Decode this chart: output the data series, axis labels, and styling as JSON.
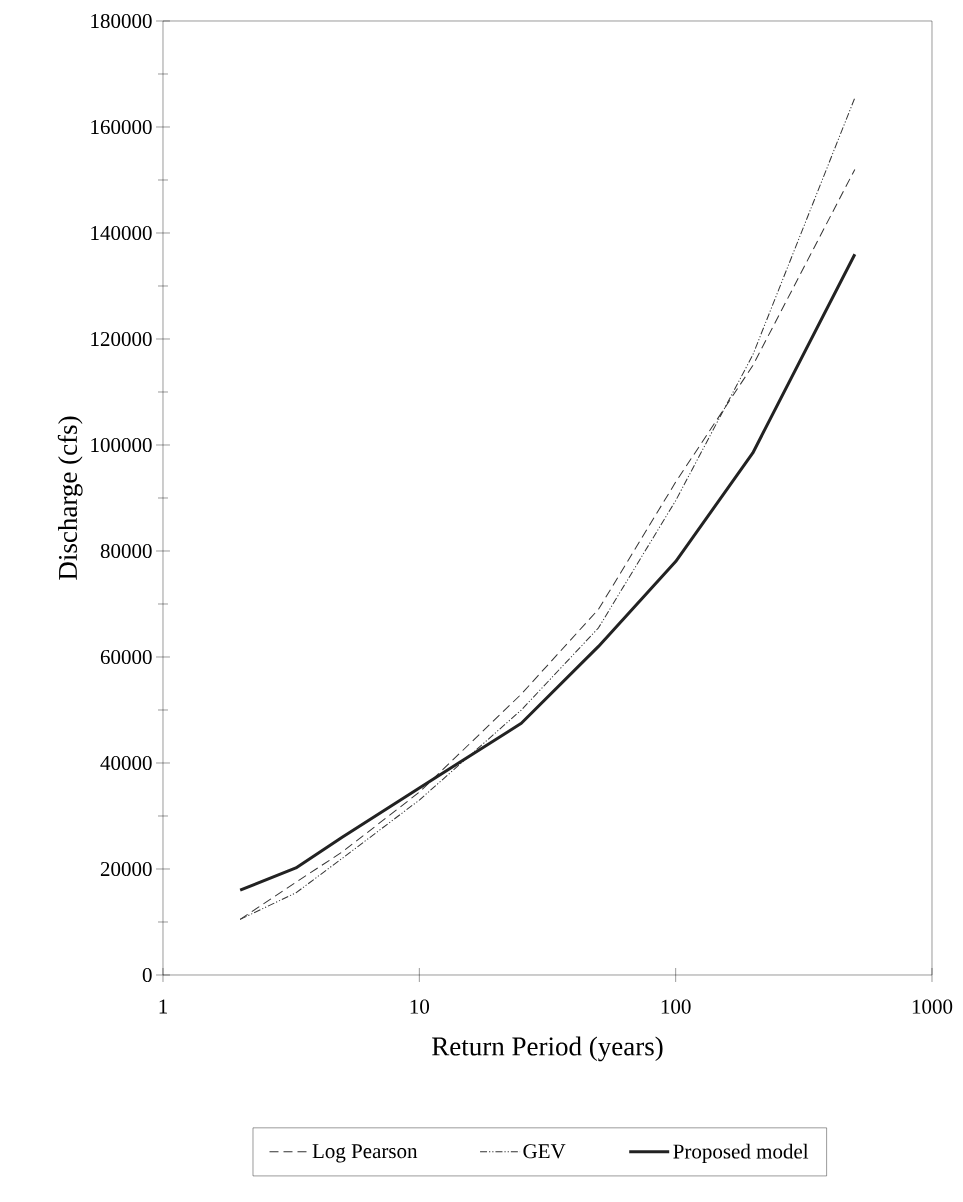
{
  "chart_data": {
    "type": "line",
    "xlabel": "Return Period (years)",
    "ylabel": "Discharge (cfs)",
    "log": "x",
    "xlim": [
      1,
      1000
    ],
    "xticks": [
      1,
      10,
      100,
      1000
    ],
    "ylim": [
      0,
      180000
    ],
    "yticks": [
      0,
      20000,
      40000,
      60000,
      80000,
      100000,
      120000,
      140000,
      160000,
      180000
    ],
    "x": [
      2,
      3.3,
      5,
      10,
      25,
      50,
      100,
      200,
      500
    ],
    "series": [
      {
        "name": "Log Pearson",
        "color": "#333333",
        "line_style": "dashed",
        "values": [
          10500,
          17500,
          23200,
          34500,
          53000,
          69000,
          93000,
          115000,
          152000
        ]
      },
      {
        "name": "GEV",
        "color": "#333333",
        "line_style": "dotted",
        "values": [
          10500,
          15500,
          22000,
          33000,
          50000,
          65500,
          89500,
          117000,
          165500
        ]
      },
      {
        "name": "Proposed model",
        "color": "#222222",
        "line_style": "solid",
        "values": [
          16000,
          20200,
          26000,
          35300,
          47500,
          62000,
          78000,
          98500,
          136000
        ]
      }
    ],
    "legend": "bottom",
    "grid": false,
    "marker": "none"
  }
}
